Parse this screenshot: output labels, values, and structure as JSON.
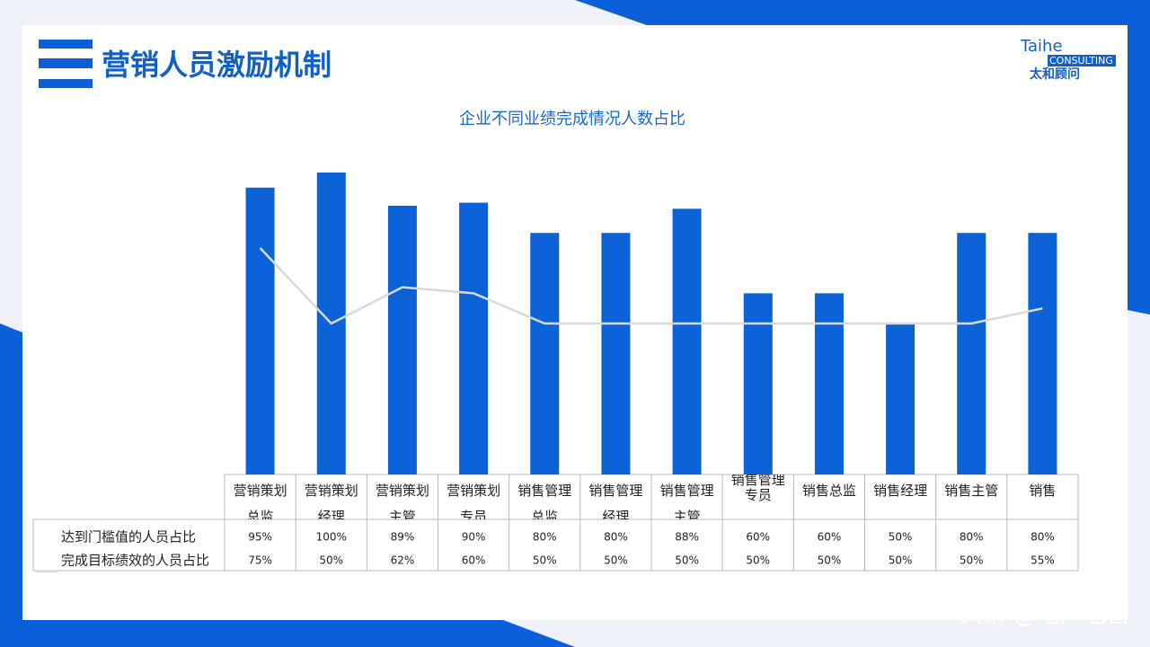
{
  "header": {
    "title": "营销人员激励机制",
    "logo": {
      "name": "Taihe",
      "tagline": "CONSULTING",
      "chinese_name": "太和顾问"
    }
  },
  "chart_data": {
    "type": "bar-line",
    "title": "企业不同业绩完成情况人数占比",
    "categories": [
      "营销策划总监",
      "营销策划经理",
      "营销策划主管",
      "营销策划专员",
      "销售管理总监",
      "销售管理经理",
      "销售管理主管",
      "销售管理专员",
      "销售总监",
      "销售经理",
      "销售主管",
      "销售"
    ],
    "series": [
      {
        "name": "达到门槛值的人员占比",
        "type": "bar",
        "color": "#0b62d6",
        "values": [
          95,
          100,
          89,
          90,
          80,
          80,
          88,
          60,
          60,
          50,
          80,
          80
        ],
        "value_labels": [
          "95%",
          "100%",
          "89%",
          "90%",
          "80%",
          "80%",
          "88%",
          "60%",
          "60%",
          "50%",
          "80%",
          "80%"
        ]
      },
      {
        "name": "完成目标绩效的人员占比",
        "type": "line",
        "color": "#d9d9d9",
        "values": [
          75,
          50,
          62,
          60,
          50,
          50,
          50,
          50,
          50,
          50,
          50,
          55
        ],
        "value_labels": [
          "75%",
          "50%",
          "62%",
          "60%",
          "50%",
          "50%",
          "50%",
          "50%",
          "50%",
          "50%",
          "50%",
          "55%"
        ]
      }
    ]
  },
  "footer": {
    "watermark": "头条 @地产老雷"
  }
}
